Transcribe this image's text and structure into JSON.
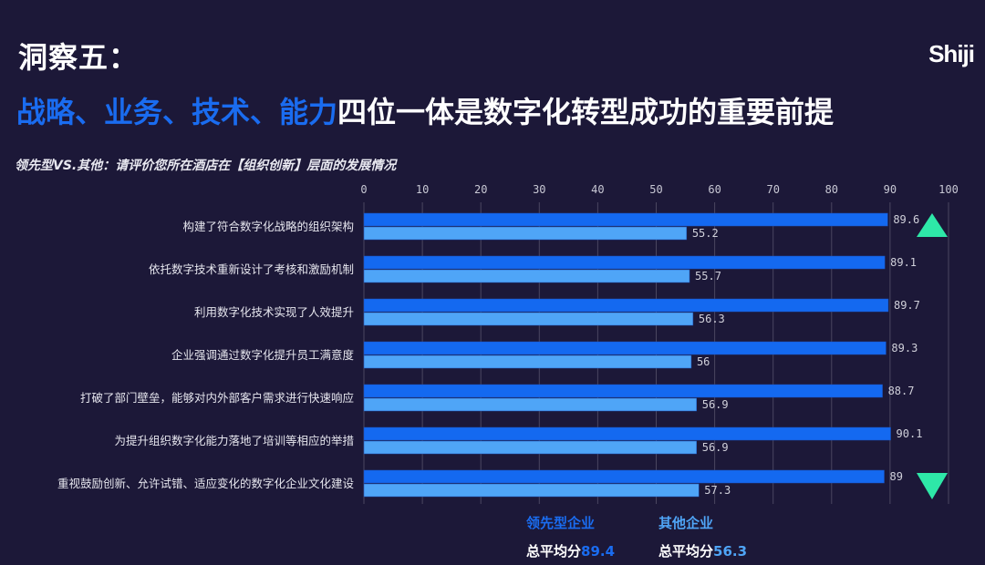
{
  "header": {
    "title": "洞察五：",
    "headline_highlight": "战略、业务、技术、能力",
    "headline_rest": "四位一体是数字化转型成功的重要前提",
    "logo": "Shiji"
  },
  "chart_data": {
    "type": "bar",
    "orientation": "horizontal",
    "title": "领先型VS.其他：请评价您所在酒店在【组织创新】层面的发展情况",
    "categories": [
      "构建了符合数字化战略的组织架构",
      "依托数字技术重新设计了考核和激励机制",
      "利用数字化技术实现了人效提升",
      "企业强调通过数字化提升员工满意度",
      "打破了部门壁垒，能够对内外部客户需求进行快速响应",
      "为提升组织数字化能力落地了培训等相应的举措",
      "重视鼓励创新、允许试错、适应变化的数字化企业文化建设"
    ],
    "series": [
      {
        "name": "领先型企业",
        "color": "#1469f0",
        "values": [
          89.6,
          89.1,
          89.7,
          89.3,
          88.7,
          90.1,
          89
        ]
      },
      {
        "name": "其他企业",
        "color": "#4fa5f7",
        "values": [
          55.2,
          55.7,
          56.3,
          56,
          56.9,
          56.9,
          57.3
        ]
      }
    ],
    "xlim": [
      0,
      100
    ],
    "xticks": [
      0,
      10,
      20,
      30,
      40,
      50,
      60,
      70,
      80,
      90,
      100
    ],
    "grid": true,
    "legend_placement": "bottom",
    "markers": [
      {
        "shape": "triangle-up",
        "color": "#2ee8a8",
        "row": 0
      },
      {
        "shape": "triangle-down",
        "color": "#2ee8a8",
        "row": 6
      }
    ],
    "averages": [
      {
        "label": "总平均分",
        "value": "89.4"
      },
      {
        "label": "总平均分",
        "value": "56.3"
      }
    ]
  }
}
